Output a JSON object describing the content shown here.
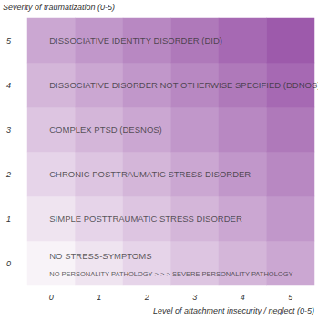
{
  "chart_data": {
    "type": "heatmap",
    "x_label": "Level of attachment insecurity / neglect (0-5)",
    "y_label": "Severity of traumatization (0-5)",
    "x": [
      0,
      1,
      2,
      3,
      4,
      5
    ],
    "y": [
      0,
      1,
      2,
      3,
      4,
      5
    ],
    "color": "#9d5aab",
    "cells": [
      [
        0,
        0,
        0
      ],
      [
        1,
        0,
        1
      ],
      [
        2,
        0,
        2
      ],
      [
        3,
        0,
        3
      ],
      [
        4,
        0,
        4
      ],
      [
        5,
        0,
        5
      ],
      [
        0,
        1,
        1
      ],
      [
        1,
        1,
        2
      ],
      [
        2,
        1,
        3
      ],
      [
        3,
        1,
        4
      ],
      [
        4,
        1,
        5
      ],
      [
        5,
        1,
        6
      ],
      [
        0,
        2,
        2
      ],
      [
        1,
        2,
        3
      ],
      [
        2,
        2,
        4
      ],
      [
        3,
        2,
        5
      ],
      [
        4,
        2,
        6
      ],
      [
        5,
        2,
        7
      ],
      [
        0,
        3,
        3
      ],
      [
        1,
        3,
        4
      ],
      [
        2,
        3,
        5
      ],
      [
        3,
        3,
        6
      ],
      [
        4,
        3,
        7
      ],
      [
        5,
        3,
        8
      ],
      [
        0,
        4,
        4
      ],
      [
        1,
        4,
        5
      ],
      [
        2,
        4,
        6
      ],
      [
        3,
        4,
        7
      ],
      [
        4,
        4,
        8
      ],
      [
        5,
        4,
        9
      ],
      [
        0,
        5,
        5
      ],
      [
        1,
        5,
        6
      ],
      [
        2,
        5,
        7
      ],
      [
        3,
        5,
        8
      ],
      [
        4,
        5,
        9
      ],
      [
        5,
        5,
        10
      ]
    ],
    "annotations": [
      {
        "x": 0,
        "y": 5,
        "text": "DISSOCIATIVE IDENTITY DISORDER (DID)"
      },
      {
        "x": 0,
        "y": 4,
        "text": "DISSOCIATIVE DISORDER NOT OTHERWISE SPECIFIED (DDNOS)"
      },
      {
        "x": 0,
        "y": 3,
        "text": "COMPLEX PTSD (DESNOS)"
      },
      {
        "x": 0,
        "y": 2,
        "text": "CHRONIC POSTTRAUMATIC STRESS DISORDER"
      },
      {
        "x": 0,
        "y": 1,
        "text": "SIMPLE POSTTRAUMATIC STRESS DISORDER"
      },
      {
        "x": 0,
        "y": 0,
        "text": "NO STRESS-SYMPTOMS"
      },
      {
        "x": 0,
        "y": 0,
        "text": "NO PERSONALITY PATHOLOGY > > > SEVERE PERSONALITY PATHOLOGY"
      }
    ]
  }
}
